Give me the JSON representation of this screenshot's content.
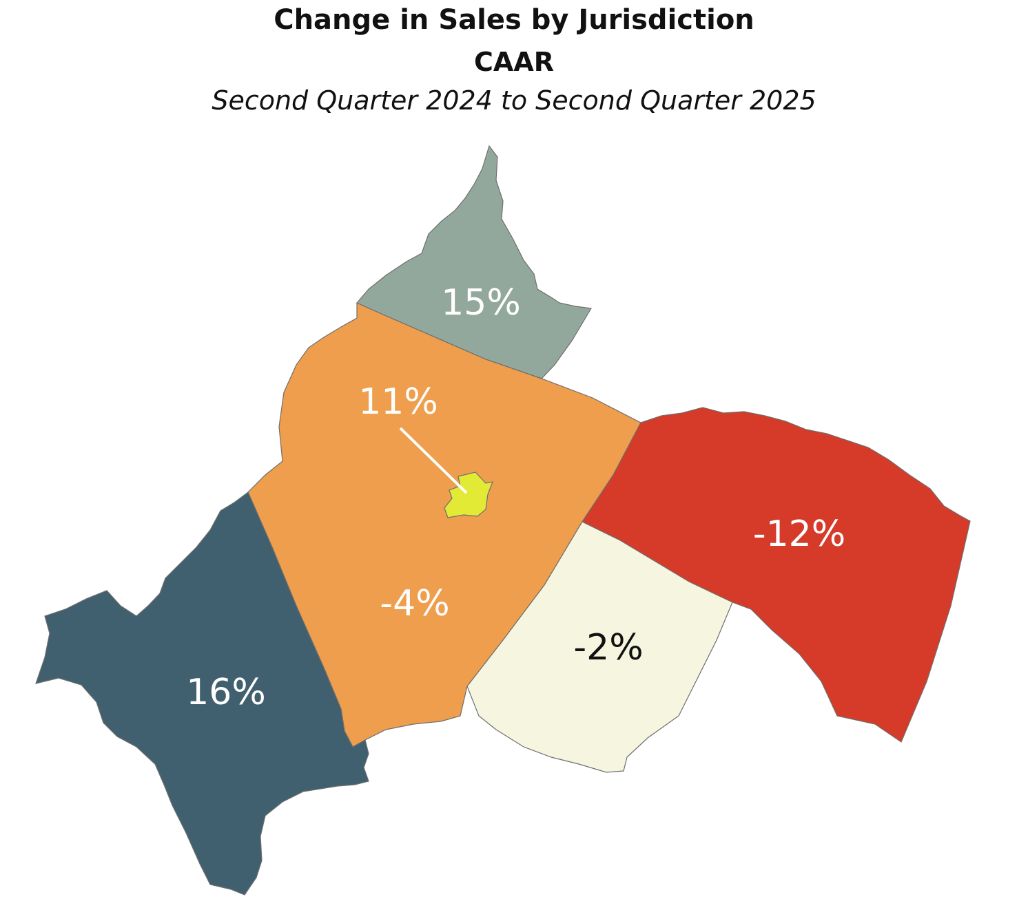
{
  "header": {
    "title": "Change in Sales by Jurisdiction",
    "subtitle": "CAAR",
    "period": "Second Quarter 2024 to Second Quarter 2025"
  },
  "regions": [
    {
      "label": "15%",
      "value": 15,
      "color": "#93a89c",
      "label_color": "#ffffff"
    },
    {
      "label": "-4%",
      "value": -4,
      "color": "#ee9e4c",
      "label_color": "#ffffff"
    },
    {
      "label": "11%",
      "value": 11,
      "color": "#e3ea35",
      "label_color": "#ffffff"
    },
    {
      "label": "-12%",
      "value": -12,
      "color": "#d63a28",
      "label_color": "#ffffff"
    },
    {
      "label": "-2%",
      "value": -2,
      "color": "#f5f5e0",
      "label_color": "#111111"
    },
    {
      "label": "16%",
      "value": 16,
      "color": "#41606f",
      "label_color": "#ffffff"
    }
  ]
}
